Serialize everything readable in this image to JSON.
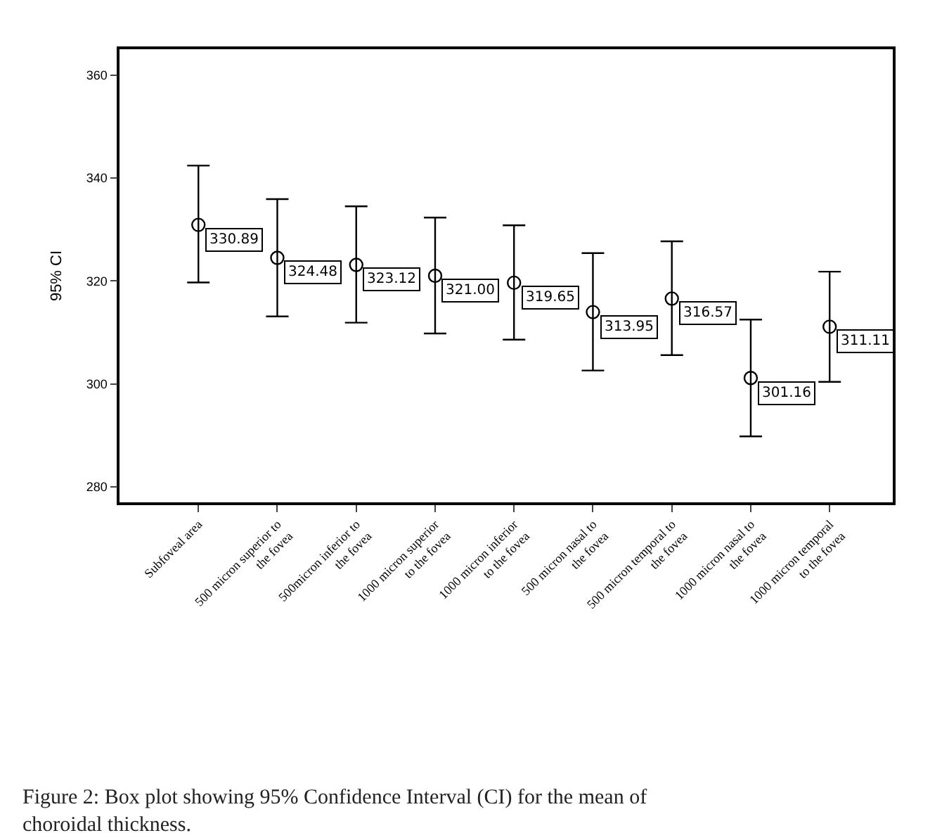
{
  "chart_data": {
    "type": "scatter",
    "categories": [
      "Subfoveal area",
      "500 micron superior to the fovea",
      "500micron inferior to the fovea",
      "1000 micron superior to the fovea",
      "1000 micron inferior to the fovea",
      "500 micron nasal to the fovea",
      "500 micron temporal to the fovea",
      "1000 micron nasal to the fovea",
      "1000 micron temporal to the fovea"
    ],
    "values": [
      330.89,
      324.48,
      323.12,
      321.0,
      319.65,
      313.95,
      316.57,
      301.16,
      311.11
    ],
    "errors": [
      [
        319.7,
        342.4
      ],
      [
        313.1,
        335.9
      ],
      [
        311.9,
        334.5
      ],
      [
        309.8,
        332.3
      ],
      [
        308.6,
        330.8
      ],
      [
        302.6,
        325.4
      ],
      [
        305.6,
        327.7
      ],
      [
        289.8,
        312.5
      ],
      [
        300.4,
        321.8
      ]
    ],
    "value_labels": [
      "330.89",
      "324.48",
      "323.12",
      "321.00",
      "319.65",
      "313.95",
      "316.57",
      "301.16",
      "311.11"
    ],
    "color": "#000000",
    "marker": "circle",
    "ylabel": "95% CI",
    "ylim": [
      277,
      365
    ],
    "yticks": [
      280,
      300,
      320,
      340,
      360
    ],
    "annotations": [
      "Figure 2: Box plot showing 95% Confidence Interval (CI) for the mean of choroidal thickness."
    ]
  }
}
